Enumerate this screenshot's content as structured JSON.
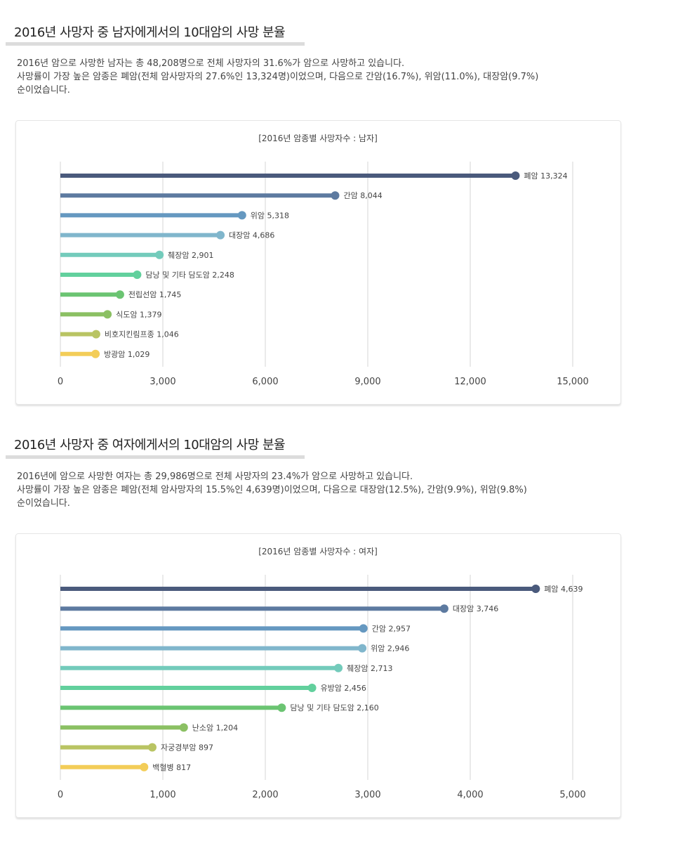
{
  "sections": [
    {
      "heading": "2016년 사망자 중 남자에게서의 10대암의 사망 분율",
      "desc_lines": [
        "2016년 암으로 사망한 남자는 총 48,208명으로 전체 사망자의 31.6%가 암으로 사망하고 있습니다.",
        "사망률이 가장 높은 암종은 폐암(전체 암사망자의 27.6%인 13,324명)이었으며, 다음으로 간암(16.7%), 위암(11.0%), 대장암(9.7%)",
        "순이었습니다."
      ]
    },
    {
      "heading": "2016년 사망자 중 여자에게서의 10대암의 사망 분율",
      "desc_lines": [
        "2016년에 암으로 사망한 여자는 총 29,986명으로 전체 사망자의 23.4%가 암으로 사망하고 있습니다.",
        "사망률이 가장 높은 암종은 폐암(전체 암사망자의 15.5%인 4,639명)이었으며, 다음으로 대장암(12.5%), 간암(9.9%), 위암(9.8%)",
        "순이었습니다."
      ]
    }
  ],
  "chart_data": [
    {
      "type": "bar",
      "orientation": "horizontal",
      "style": "lollipop",
      "title": "[2016년 암종별 사망자수 : 남자]",
      "categories": [
        "폐암",
        "간암",
        "위암",
        "대장암",
        "췌장암",
        "담낭 및 기타 담도암",
        "전립선암",
        "식도암",
        "비호지킨림프종",
        "방광암"
      ],
      "values": [
        13324,
        8044,
        5318,
        4686,
        2901,
        2248,
        1745,
        1379,
        1046,
        1029
      ],
      "value_labels": [
        "13,324",
        "8,044",
        "5,318",
        "4,686",
        "2,901",
        "2,248",
        "1,745",
        "1,379",
        "1,046",
        "1,029"
      ],
      "xlim": [
        0,
        15000
      ],
      "xticks": [
        0,
        3000,
        6000,
        9000,
        12000,
        15000
      ],
      "xtick_labels": [
        "0",
        "3,000",
        "6,000",
        "9,000",
        "12,000",
        "15,000"
      ],
      "grid": "vertical",
      "colors": [
        "#4a5a7c",
        "#5d7aa0",
        "#6598c0",
        "#80b6cc",
        "#73cbbb",
        "#62d09d",
        "#6bc472",
        "#8bc063",
        "#b9c463",
        "#f3cd58"
      ]
    },
    {
      "type": "bar",
      "orientation": "horizontal",
      "style": "lollipop",
      "title": "[2016년 암종별 사망자수 : 여자]",
      "categories": [
        "폐암",
        "대장암",
        "간암",
        "위암",
        "췌장암",
        "유방암",
        "담낭 및 기타 담도암",
        "난소암",
        "자궁경부암",
        "백혈병"
      ],
      "values": [
        4639,
        3746,
        2957,
        2946,
        2713,
        2456,
        2160,
        1204,
        897,
        817
      ],
      "value_labels": [
        "4,639",
        "3,746",
        "2,957",
        "2,946",
        "2,713",
        "2,456",
        "2,160",
        "1,204",
        "897",
        "817"
      ],
      "xlim": [
        0,
        5000
      ],
      "xticks": [
        0,
        1000,
        2000,
        3000,
        4000,
        5000
      ],
      "xtick_labels": [
        "0",
        "1,000",
        "2,000",
        "3,000",
        "4,000",
        "5,000"
      ],
      "grid": "vertical",
      "colors": [
        "#4a5a7c",
        "#5d7aa0",
        "#6598c0",
        "#80b6cc",
        "#73cbbb",
        "#62d09d",
        "#6bc472",
        "#8bc063",
        "#b9c463",
        "#f3cd58"
      ]
    }
  ]
}
